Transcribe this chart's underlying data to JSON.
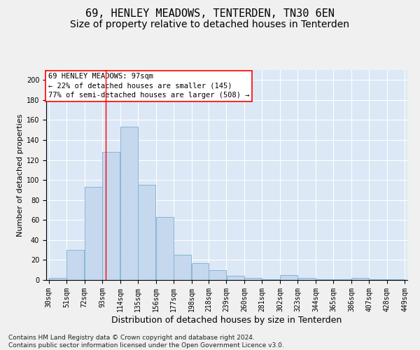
{
  "title": "69, HENLEY MEADOWS, TENTERDEN, TN30 6EN",
  "subtitle": "Size of property relative to detached houses in Tenterden",
  "xlabel": "Distribution of detached houses by size in Tenterden",
  "ylabel": "Number of detached properties",
  "bar_color": "#c5d8ee",
  "bar_edge_color": "#7aafd4",
  "background_color": "#dce8f5",
  "grid_color": "#ffffff",
  "annotation_text": "69 HENLEY MEADOWS: 97sqm\n← 22% of detached houses are smaller (145)\n77% of semi-detached houses are larger (508) →",
  "property_size": 97,
  "red_line_x": 97,
  "bins": [
    30,
    51,
    72,
    93,
    114,
    135,
    156,
    177,
    198,
    218,
    239,
    260,
    281,
    302,
    323,
    344,
    365,
    386,
    407,
    428,
    449
  ],
  "bar_heights": [
    2,
    30,
    93,
    128,
    153,
    95,
    63,
    25,
    17,
    10,
    4,
    2,
    1,
    5,
    2,
    1,
    1,
    2,
    1,
    1
  ],
  "ylim": [
    0,
    210
  ],
  "yticks": [
    0,
    20,
    40,
    60,
    80,
    100,
    120,
    140,
    160,
    180,
    200
  ],
  "footnote": "Contains HM Land Registry data © Crown copyright and database right 2024.\nContains public sector information licensed under the Open Government Licence v3.0.",
  "annotation_box_color": "white",
  "annotation_box_edge_color": "red",
  "red_line_color": "red",
  "fig_background": "#f0f0f0",
  "title_fontsize": 11,
  "subtitle_fontsize": 10,
  "xlabel_fontsize": 9,
  "ylabel_fontsize": 8,
  "tick_fontsize": 7,
  "annotation_fontsize": 7.5,
  "footnote_fontsize": 6.5
}
